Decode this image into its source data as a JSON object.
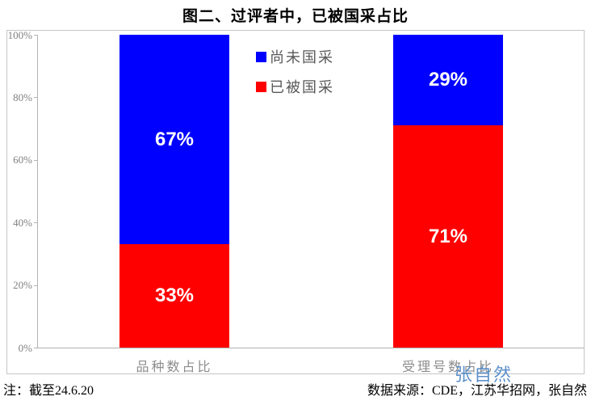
{
  "title": "图二、过评者中，已被国采占比",
  "chart_data": {
    "type": "bar",
    "stacked": true,
    "orientation": "vertical",
    "categories": [
      "品种数占比",
      "受理号数占比"
    ],
    "series": [
      {
        "name": "尚未国采",
        "color": "#0000ff",
        "values": [
          67,
          29
        ]
      },
      {
        "name": "已被国采",
        "color": "#ff0000",
        "values": [
          33,
          71
        ]
      }
    ],
    "ylim": [
      0,
      100
    ],
    "yticks": [
      "100%",
      "80%",
      "60%",
      "40%",
      "20%",
      "0%"
    ],
    "grid": false,
    "legend_position": "inside-top-center",
    "bar_label_suffix": "%",
    "bar_label_color": "#ffffff",
    "axis_color": "#b3b3b3"
  },
  "legend": {
    "items": [
      {
        "label": "尚未国采",
        "color": "#0000ff"
      },
      {
        "label": "已被国采",
        "color": "#ff0000"
      }
    ]
  },
  "footer": {
    "note": "注：截至24.6.20",
    "source": "数据来源：CDE，江苏华招网，张自然"
  },
  "watermark": "张自然"
}
